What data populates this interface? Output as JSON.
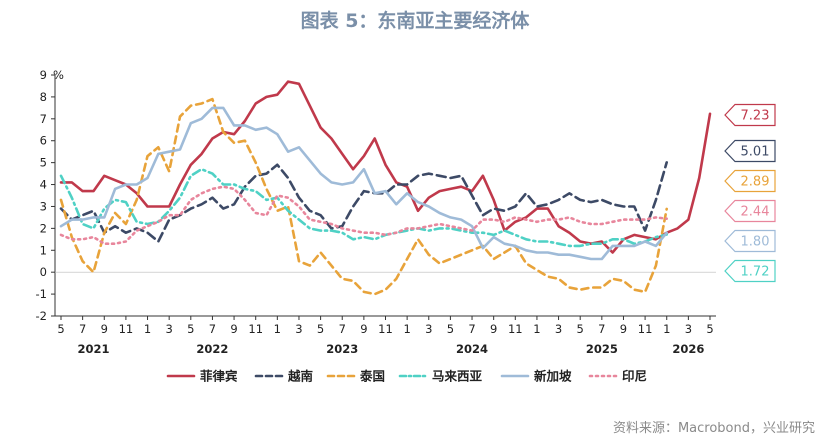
{
  "chart_data": {
    "type": "line",
    "title": "图表 5：东南亚主要经济体",
    "unit": "%",
    "source": "资料来源：Macrobond，兴业研究",
    "ylim": [
      -2,
      9
    ],
    "y_ticks": [
      -2,
      -1,
      0,
      1,
      2,
      3,
      4,
      5,
      6,
      7,
      8,
      9
    ],
    "grid": false,
    "legend_position": "bottom",
    "x_start": "2021-05",
    "x_end": "2026-05",
    "x_tick_labels": [
      "5",
      "7",
      "9",
      "11",
      "1",
      "3",
      "5",
      "7",
      "9",
      "11",
      "1",
      "3",
      "5",
      "7",
      "9",
      "11",
      "1",
      "3",
      "5",
      "7",
      "9",
      "11",
      "1",
      "3",
      "5",
      "7",
      "9",
      "11",
      "1",
      "3",
      "5"
    ],
    "year_labels": [
      {
        "label": "2021",
        "at": "2021-08"
      },
      {
        "label": "2022",
        "at": "2022-07"
      },
      {
        "label": "2023",
        "at": "2023-07"
      },
      {
        "label": "2024",
        "at": "2024-07"
      },
      {
        "label": "2025",
        "at": "2025-07"
      },
      {
        "label": "2026",
        "at": "2026-03"
      }
    ],
    "series": [
      {
        "name": "菲律宾",
        "color": "#c0394b",
        "dash": "solid",
        "last_label": "7.23",
        "label_y": 7.23,
        "start": "2021-05",
        "values": [
          4.1,
          4.1,
          3.7,
          3.7,
          4.4,
          4.2,
          4.0,
          3.6,
          3.0,
          3.0,
          3.0,
          4.0,
          4.9,
          5.4,
          6.1,
          6.4,
          6.3,
          6.9,
          7.7,
          8.0,
          8.1,
          8.7,
          8.6,
          7.6,
          6.6,
          6.1,
          5.4,
          4.7,
          5.3,
          6.1,
          4.9,
          4.1,
          3.9,
          2.8,
          3.4,
          3.7,
          3.8,
          3.9,
          3.7,
          4.4,
          3.3,
          1.9,
          2.3,
          2.5,
          2.9,
          2.9,
          2.1,
          1.8,
          1.4,
          1.3,
          1.4,
          0.9,
          1.5,
          1.7,
          1.6,
          1.5,
          1.8,
          2.0,
          2.4,
          4.3,
          7.23
        ]
      },
      {
        "name": "越南",
        "color": "#3d4a66",
        "dash": "longdash",
        "last_label": "5.01",
        "label_y": 5.01,
        "start": "2021-05",
        "values": [
          2.9,
          2.4,
          2.6,
          2.8,
          1.8,
          2.1,
          1.8,
          2.0,
          1.8,
          1.4,
          2.4,
          2.6,
          2.9,
          3.1,
          3.4,
          2.9,
          3.1,
          3.9,
          4.4,
          4.5,
          4.9,
          4.3,
          3.4,
          2.8,
          2.6,
          2.0,
          2.1,
          3.0,
          3.7,
          3.6,
          3.6,
          4.0,
          4.0,
          4.4,
          4.5,
          4.4,
          4.3,
          4.4,
          3.5,
          2.6,
          2.9,
          2.8,
          3.0,
          3.6,
          3.0,
          3.1,
          3.3,
          3.6,
          3.3,
          3.2,
          3.3,
          3.1,
          3.0,
          3.0,
          1.9,
          3.3,
          5.01
        ]
      },
      {
        "name": "泰国",
        "color": "#e8a33a",
        "dash": "dash",
        "last_label": "2.89",
        "label_y": 2.89,
        "start": "2021-05",
        "values": [
          3.3,
          1.6,
          0.5,
          0.0,
          1.8,
          2.7,
          2.2,
          3.3,
          5.3,
          5.7,
          4.6,
          7.1,
          7.6,
          7.7,
          7.9,
          6.4,
          5.9,
          6.0,
          5.0,
          3.8,
          2.8,
          3.0,
          0.5,
          0.3,
          0.9,
          0.3,
          -0.3,
          -0.4,
          -0.9,
          -1.0,
          -0.8,
          -0.3,
          0.6,
          1.5,
          0.8,
          0.4,
          0.6,
          0.8,
          1.0,
          1.2,
          0.6,
          0.9,
          1.2,
          0.4,
          0.1,
          -0.2,
          -0.3,
          -0.7,
          -0.8,
          -0.7,
          -0.7,
          -0.3,
          -0.4,
          -0.8,
          -0.9,
          0.3,
          2.89
        ]
      },
      {
        "name": "马来西亚",
        "color": "#4fd1c5",
        "dash": "dashdot",
        "last_label": "1.72",
        "label_y": 1.72,
        "start": "2021-05",
        "values": [
          4.4,
          3.4,
          2.2,
          2.0,
          2.9,
          3.3,
          3.2,
          2.3,
          2.2,
          2.3,
          2.8,
          3.4,
          4.4,
          4.7,
          4.5,
          4.0,
          4.0,
          3.8,
          3.7,
          3.3,
          3.4,
          2.8,
          2.4,
          2.0,
          1.9,
          1.9,
          1.8,
          1.5,
          1.6,
          1.5,
          1.7,
          1.8,
          1.9,
          2.0,
          1.9,
          2.0,
          2.0,
          1.9,
          1.8,
          1.8,
          1.7,
          1.9,
          1.7,
          1.5,
          1.4,
          1.4,
          1.3,
          1.2,
          1.2,
          1.3,
          1.3,
          1.5,
          1.5,
          1.3,
          1.4,
          1.6,
          1.72
        ],
        "end": "2026-01"
      },
      {
        "name": "新加坡",
        "color": "#9fbbd8",
        "dash": "solid",
        "last_label": "1.80",
        "label_y": 1.8,
        "start": "2021-05",
        "values": [
          2.1,
          2.4,
          2.4,
          2.5,
          2.5,
          3.8,
          4.0,
          4.0,
          4.3,
          5.4,
          5.5,
          5.6,
          6.8,
          7.0,
          7.5,
          7.5,
          6.7,
          6.7,
          6.5,
          6.6,
          6.3,
          5.5,
          5.7,
          5.1,
          4.5,
          4.1,
          4.0,
          4.1,
          4.7,
          3.6,
          3.7,
          3.1,
          3.6,
          3.2,
          3.0,
          2.7,
          2.5,
          2.4,
          2.1,
          1.1,
          1.6,
          1.3,
          1.2,
          1.0,
          0.9,
          0.9,
          0.8,
          0.8,
          0.7,
          0.6,
          0.6,
          1.2,
          1.2,
          1.2,
          1.4,
          1.2,
          1.8
        ],
        "end": "2026-01"
      },
      {
        "name": "印尼",
        "color": "#e8869c",
        "dash": "dot",
        "last_label": "2.44",
        "label_y": 2.44,
        "start": "2021-05",
        "values": [
          1.7,
          1.5,
          1.5,
          1.6,
          1.3,
          1.3,
          1.4,
          1.9,
          2.1,
          2.3,
          2.6,
          2.6,
          3.3,
          3.6,
          3.8,
          3.9,
          3.8,
          3.3,
          2.7,
          2.6,
          3.5,
          3.4,
          3.0,
          2.4,
          2.3,
          2.2,
          2.0,
          1.9,
          1.8,
          1.8,
          1.7,
          1.8,
          2.0,
          2.0,
          2.1,
          2.2,
          2.1,
          2.0,
          1.9,
          2.4,
          2.4,
          2.3,
          2.5,
          2.4,
          2.3,
          2.4,
          2.4,
          2.5,
          2.3,
          2.2,
          2.2,
          2.3,
          2.4,
          2.4,
          2.4,
          2.5,
          2.44
        ],
        "end": "2026-01"
      }
    ]
  }
}
